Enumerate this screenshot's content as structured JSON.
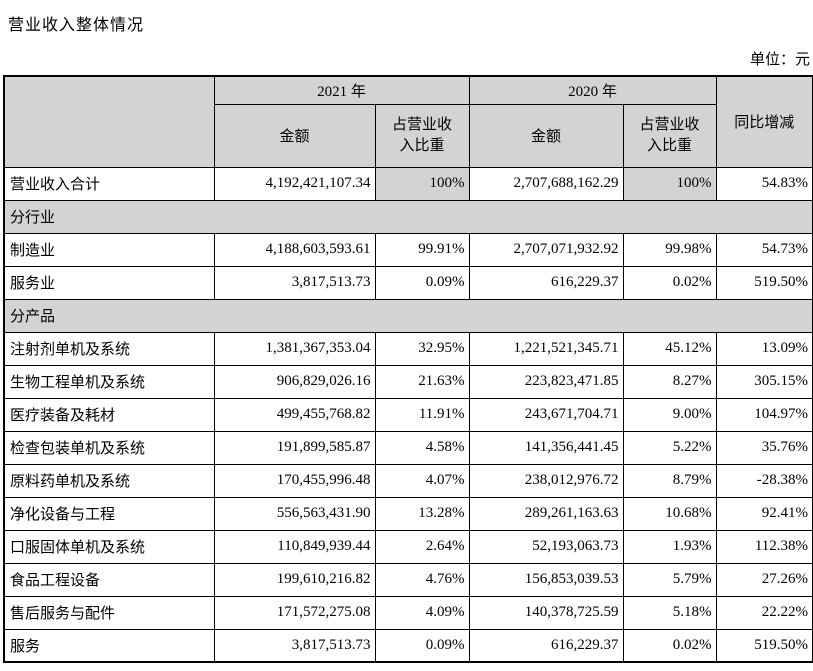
{
  "page": {
    "title": "营业收入整体情况",
    "unit_label": "单位：元"
  },
  "colors": {
    "header_bg": "#d3d3d3",
    "border": "#000000",
    "text": "#000000",
    "background": "#ffffff"
  },
  "table": {
    "header": {
      "year_2021": "2021 年",
      "year_2020": "2020 年",
      "amount": "金额",
      "pct_share": "占营业收\n入比重",
      "yoy": "同比增减"
    },
    "rows": [
      {
        "type": "total",
        "label": "营业收入合计",
        "a2021": "4,192,421,107.34",
        "p2021": "100%",
        "a2020": "2,707,688,162.29",
        "p2020": "100%",
        "yoy": "54.83%"
      },
      {
        "type": "section",
        "label": "分行业"
      },
      {
        "type": "data",
        "label": "制造业",
        "a2021": "4,188,603,593.61",
        "p2021": "99.91%",
        "a2020": "2,707,071,932.92",
        "p2020": "99.98%",
        "yoy": "54.73%"
      },
      {
        "type": "data",
        "label": "服务业",
        "a2021": "3,817,513.73",
        "p2021": "0.09%",
        "a2020": "616,229.37",
        "p2020": "0.02%",
        "yoy": "519.50%"
      },
      {
        "type": "section",
        "label": "分产品"
      },
      {
        "type": "data",
        "label": "注射剂单机及系统",
        "a2021": "1,381,367,353.04",
        "p2021": "32.95%",
        "a2020": "1,221,521,345.71",
        "p2020": "45.12%",
        "yoy": "13.09%"
      },
      {
        "type": "data",
        "label": "生物工程单机及系统",
        "a2021": "906,829,026.16",
        "p2021": "21.63%",
        "a2020": "223,823,471.85",
        "p2020": "8.27%",
        "yoy": "305.15%"
      },
      {
        "type": "data",
        "label": "医疗装备及耗材",
        "a2021": "499,455,768.82",
        "p2021": "11.91%",
        "a2020": "243,671,704.71",
        "p2020": "9.00%",
        "yoy": "104.97%"
      },
      {
        "type": "data",
        "label": "检查包装单机及系统",
        "a2021": "191,899,585.87",
        "p2021": "4.58%",
        "a2020": "141,356,441.45",
        "p2020": "5.22%",
        "yoy": "35.76%"
      },
      {
        "type": "data",
        "label": "原料药单机及系统",
        "a2021": "170,455,996.48",
        "p2021": "4.07%",
        "a2020": "238,012,976.72",
        "p2020": "8.79%",
        "yoy": "-28.38%"
      },
      {
        "type": "data",
        "label": "净化设备与工程",
        "a2021": "556,563,431.90",
        "p2021": "13.28%",
        "a2020": "289,261,163.63",
        "p2020": "10.68%",
        "yoy": "92.41%"
      },
      {
        "type": "data",
        "label": "口服固体单机及系统",
        "a2021": "110,849,939.44",
        "p2021": "2.64%",
        "a2020": "52,193,063.73",
        "p2020": "1.93%",
        "yoy": "112.38%"
      },
      {
        "type": "data",
        "label": "食品工程设备",
        "a2021": "199,610,216.82",
        "p2021": "4.76%",
        "a2020": "156,853,039.53",
        "p2020": "5.79%",
        "yoy": "27.26%"
      },
      {
        "type": "data",
        "label": "售后服务与配件",
        "a2021": "171,572,275.08",
        "p2021": "4.09%",
        "a2020": "140,378,725.59",
        "p2020": "5.18%",
        "yoy": "22.22%"
      },
      {
        "type": "data",
        "label": "服务",
        "a2021": "3,817,513.73",
        "p2021": "0.09%",
        "a2020": "616,229.37",
        "p2020": "0.02%",
        "yoy": "519.50%"
      }
    ]
  }
}
